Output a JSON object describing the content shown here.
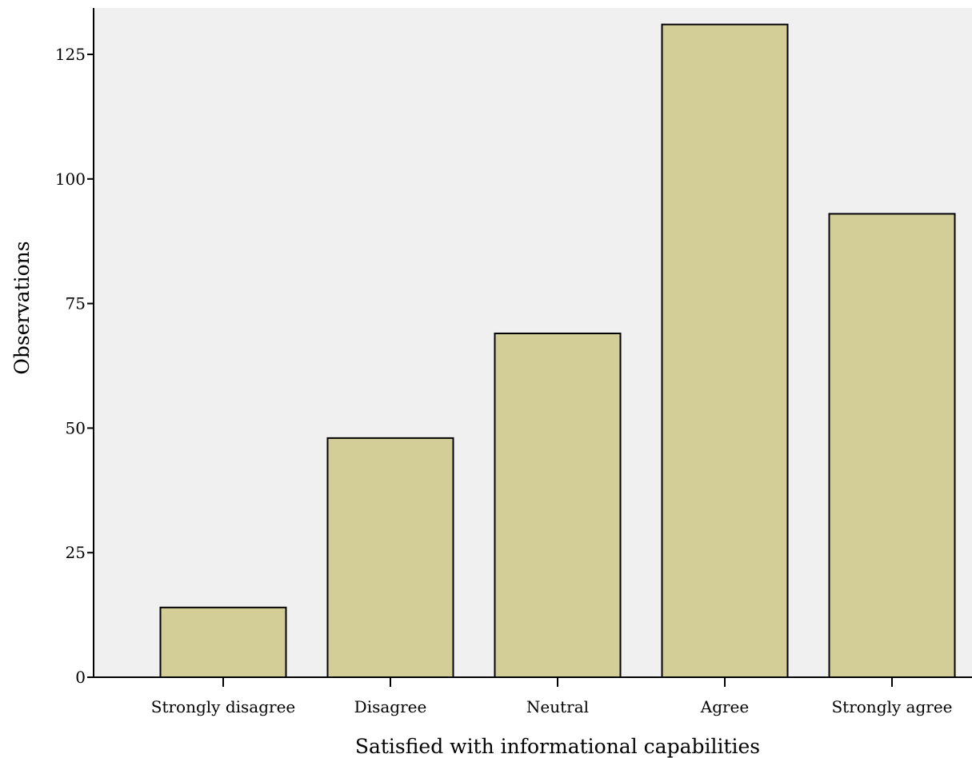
{
  "chart_data": {
    "type": "bar",
    "title": "",
    "xlabel": "Satisfied with informational capabilities",
    "ylabel": "Observations",
    "categories": [
      "Strongly disagree",
      "Disagree",
      "Neutral",
      "Agree",
      "Strongly agree"
    ],
    "values": [
      14,
      48,
      69,
      131,
      93
    ],
    "ylim": [
      0,
      135
    ],
    "yticks": [
      0,
      25,
      50,
      75,
      100,
      125
    ],
    "ytick_labels": [
      "0",
      "25",
      "50",
      "75",
      "100",
      "125"
    ],
    "grid": false,
    "legend": "none",
    "colors": {
      "plot_background": "#f0f0f0",
      "bar_fill": "#d3ce97",
      "bar_stroke": "#000000",
      "axis": "#000000"
    }
  }
}
